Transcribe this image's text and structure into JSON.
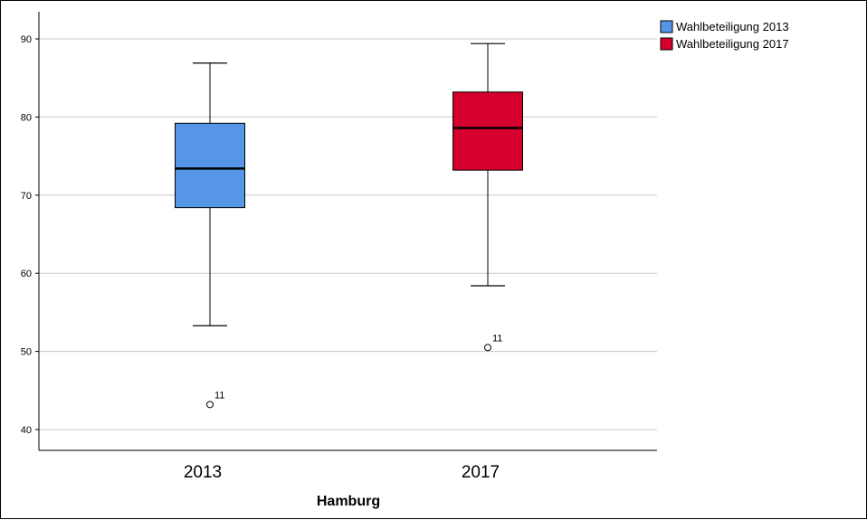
{
  "chart_data": {
    "type": "boxplot",
    "title": "",
    "xlabel": "Hamburg",
    "ylabel": "",
    "ylim": [
      37.5,
      92
    ],
    "yticks": [
      40,
      50,
      60,
      70,
      80,
      90
    ],
    "grid": true,
    "legend_position": "top-right",
    "categories": [
      "2013",
      "2017"
    ],
    "series": [
      {
        "name": "Wahlbeteiligung 2013",
        "category": "2013",
        "color": "#5596e6",
        "whisker_low": 53.3,
        "q1": 68.4,
        "median": 73.4,
        "q3": 79.2,
        "whisker_high": 86.9,
        "outliers": [
          {
            "value": 43.2,
            "label": "11"
          }
        ]
      },
      {
        "name": "Wahlbeteiligung 2017",
        "category": "2017",
        "color": "#d6002f",
        "whisker_low": 58.4,
        "q1": 73.2,
        "median": 78.6,
        "q3": 83.2,
        "whisker_high": 89.4,
        "outliers": [
          {
            "value": 50.5,
            "label": "11"
          }
        ]
      }
    ]
  }
}
